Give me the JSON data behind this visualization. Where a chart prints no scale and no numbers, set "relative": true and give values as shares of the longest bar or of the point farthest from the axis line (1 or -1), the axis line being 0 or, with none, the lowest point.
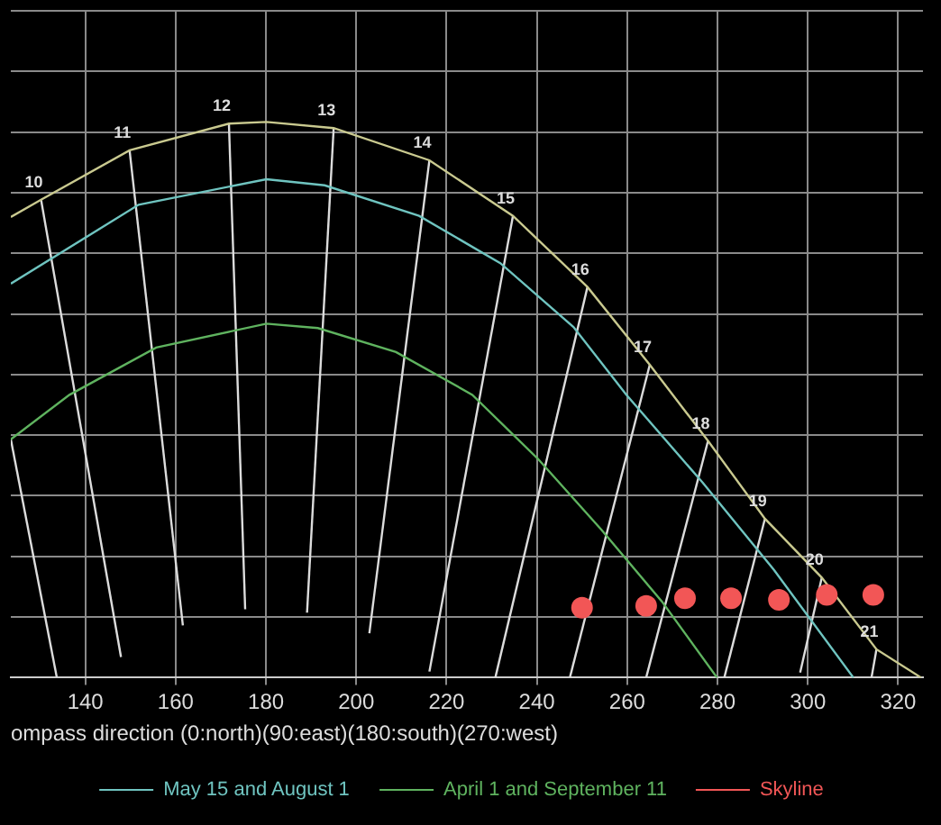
{
  "chart_data": {
    "type": "line",
    "relative": true,
    "xlabel": "ompass direction (0:north)(90:east)(180:south)(270:west)",
    "xlim": [
      123.5,
      325.5
    ],
    "xticks": [
      140,
      160,
      180,
      200,
      220,
      240,
      260,
      280,
      300,
      320
    ],
    "grid": true,
    "legend": "bottom",
    "marker": "none",
    "line_style": "solid",
    "series": [
      {
        "color": "#c9c98f",
        "x": [
          123.5,
          130.2,
          149.8,
          171.8,
          180.1,
          195.0,
          216.2,
          234.7,
          251.2,
          265.0,
          277.9,
          290.5,
          303.1,
          315.2,
          325.1
        ],
        "values": [
          0.829,
          0.86,
          0.949,
          0.997,
          1.0,
          0.989,
          0.931,
          0.831,
          0.703,
          0.563,
          0.426,
          0.286,
          0.18,
          0.051,
          0
        ]
      },
      {
        "name": "May 15 and August 1",
        "color": "#6fc4c0",
        "x": [
          123.5,
          151.8,
          180.1,
          193.0,
          213.9,
          231.9,
          248.1,
          259.8,
          276.7,
          292.5,
          310.1
        ],
        "values": [
          0.709,
          0.851,
          0.897,
          0.886,
          0.831,
          0.746,
          0.631,
          0.509,
          0.351,
          0.194,
          0
        ]
      },
      {
        "name": "April 1 and September 11",
        "color": "#5fb35f",
        "x": [
          123.5,
          136.5,
          155.7,
          180.1,
          191.5,
          208.8,
          225.7,
          240.2,
          254.3,
          267.7,
          279.9
        ],
        "values": [
          0.429,
          0.509,
          0.594,
          0.637,
          0.629,
          0.586,
          0.509,
          0.394,
          0.266,
          0.137,
          0
        ]
      },
      {
        "color": "#dcdcdc",
        "x": [
          123.5,
          133.7
        ],
        "values": [
          0.429,
          0
        ]
      },
      {
        "color": "#dcdcdc",
        "x": [
          130.2,
          147.9
        ],
        "values": [
          0.86,
          0.037
        ]
      },
      {
        "color": "#dcdcdc",
        "x": [
          149.8,
          161.6
        ],
        "values": [
          0.949,
          0.094
        ]
      },
      {
        "color": "#dcdcdc",
        "x": [
          171.8,
          175.4
        ],
        "values": [
          0.997,
          0.123
        ]
      },
      {
        "color": "#dcdcdc",
        "x": [
          195.0,
          189.1
        ],
        "values": [
          0.989,
          0.117
        ]
      },
      {
        "color": "#dcdcdc",
        "x": [
          216.2,
          202.9
        ],
        "values": [
          0.931,
          0.08
        ]
      },
      {
        "color": "#dcdcdc",
        "x": [
          234.7,
          216.2
        ],
        "values": [
          0.831,
          0.011
        ]
      },
      {
        "color": "#dcdcdc",
        "x": [
          251.2,
          230.8
        ],
        "values": [
          0.703,
          0
        ]
      },
      {
        "color": "#dcdcdc",
        "x": [
          265.0,
          247.3
        ],
        "values": [
          0.563,
          0
        ]
      },
      {
        "color": "#dcdcdc",
        "x": [
          277.9,
          264.2
        ],
        "values": [
          0.426,
          0
        ]
      },
      {
        "color": "#dcdcdc",
        "x": [
          290.5,
          281.5
        ],
        "values": [
          0.286,
          0
        ]
      },
      {
        "color": "#dcdcdc",
        "x": [
          303.1,
          298.3
        ],
        "values": [
          0.18,
          0.009
        ]
      },
      {
        "color": "#dcdcdc",
        "x": [
          315.2,
          314.1
        ],
        "values": [
          0.051,
          0
        ]
      },
      {
        "name": "Skyline",
        "type": "scatter",
        "marker": "circle",
        "color": "#f25656",
        "x": [
          250.0,
          264.2,
          272.8,
          283.0,
          293.6,
          304.2,
          314.5
        ],
        "values": [
          0.126,
          0.129,
          0.143,
          0.143,
          0.14,
          0.149,
          0.149
        ]
      }
    ],
    "annotations": [
      {
        "text": "10",
        "x": 130.2,
        "y": 0.86
      },
      {
        "text": "11",
        "x": 149.8,
        "y": 0.949
      },
      {
        "text": "12",
        "x": 171.8,
        "y": 0.997
      },
      {
        "text": "13",
        "x": 195.0,
        "y": 0.989
      },
      {
        "text": "14",
        "x": 216.2,
        "y": 0.931
      },
      {
        "text": "15",
        "x": 234.7,
        "y": 0.831
      },
      {
        "text": "16",
        "x": 251.2,
        "y": 0.703
      },
      {
        "text": "17",
        "x": 265.0,
        "y": 0.563
      },
      {
        "text": "18",
        "x": 277.9,
        "y": 0.426
      },
      {
        "text": "19",
        "x": 290.5,
        "y": 0.286
      },
      {
        "text": "20",
        "x": 303.1,
        "y": 0.18
      },
      {
        "text": "21",
        "x": 315.2,
        "y": 0.051
      }
    ]
  }
}
